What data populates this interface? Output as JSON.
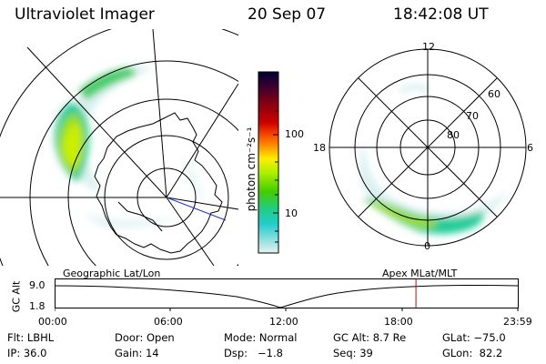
{
  "header": {
    "title": "Ultraviolet Imager",
    "date": "20 Sep 07",
    "time": "18:42:08 UT"
  },
  "left_map": {
    "label": "Geographic Lat/Lon"
  },
  "right_map": {
    "label": "Apex MLat/MLT",
    "lat_labels": [
      "60",
      "70",
      "80"
    ],
    "mlt_labels": [
      "12",
      "18",
      "6",
      "0"
    ]
  },
  "colorbar": {
    "unit_label": "photon cm⁻²s⁻¹",
    "ticks": [
      "100",
      "10"
    ],
    "colors": [
      "#000033",
      "#3a0030",
      "#8a0010",
      "#cc0000",
      "#ff5500",
      "#ffa000",
      "#ffee00",
      "#aaee00",
      "#44cc00",
      "#22cc88",
      "#22cccc",
      "#88dddd",
      "#e6f2f2"
    ]
  },
  "timeline": {
    "ylabel": "GC Alt",
    "y_ticks": [
      "9.0",
      "1.8"
    ],
    "x_ticks": [
      "00:00",
      "06:00",
      "12:00",
      "18:00",
      "23:59"
    ],
    "marker_time_hours": 18.7,
    "marker_color": "#d00000"
  },
  "footer": {
    "row1": {
      "flt": "Flt: LBHL",
      "door": "Door: Open",
      "mode": "Mode: Normal",
      "gc_alt": "GC Alt: 8.7 Re",
      "glat": "GLat: −75.0"
    },
    "row2": {
      "ip": "IP: 36.0",
      "gain": "Gain: 14",
      "dsp": "Dsp:   −1.8",
      "seq": "Seq: 39",
      "glon": "GLon:  82.2"
    }
  }
}
